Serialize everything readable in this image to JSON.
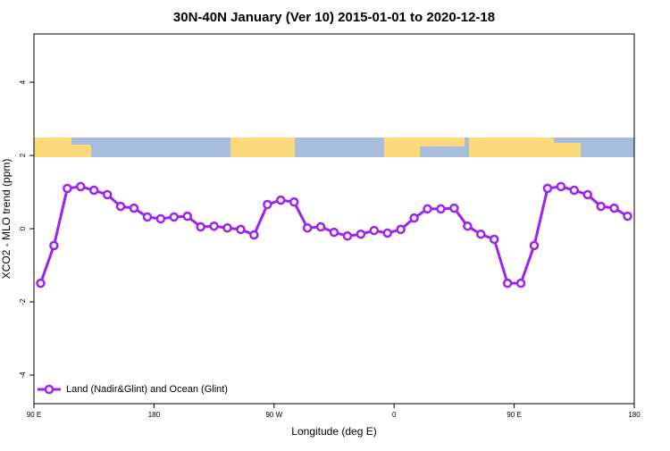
{
  "chart_data": {
    "type": "line",
    "title": "30N-40N January (Ver 10)   2015-01-01 to 2020-12-18",
    "x_label": "Longitude (deg E)",
    "y_label": "XCO2 - MLO trend (ppm)",
    "x": [
      95,
      105,
      115,
      125,
      135,
      145,
      155,
      165,
      175,
      185,
      195,
      205,
      215,
      225,
      235,
      245,
      255,
      265,
      275,
      285,
      295,
      305,
      315,
      325,
      335,
      345,
      355,
      365,
      375,
      385,
      395,
      405,
      415,
      425,
      435,
      445,
      455,
      465,
      475,
      485,
      495,
      505,
      515,
      525,
      535
    ],
    "series": [
      {
        "name": "Land (Nadir&Glint) and Ocean (Glint)",
        "color": "#a020f0",
        "values": [
          -1.49,
          -0.46,
          1.1,
          1.15,
          1.05,
          0.93,
          0.61,
          0.56,
          0.32,
          0.27,
          0.32,
          0.34,
          0.05,
          0.07,
          0.02,
          -0.02,
          -0.17,
          0.66,
          0.78,
          0.73,
          0.02,
          0.05,
          -0.1,
          -0.2,
          -0.15,
          -0.05,
          -0.12,
          -0.02,
          0.29,
          0.54,
          0.54,
          0.56,
          0.07,
          -0.15,
          -0.29,
          -1.49,
          -1.49,
          -0.46,
          1.1,
          1.15,
          1.05,
          0.93,
          0.61,
          0.56,
          0.34
        ]
      }
    ],
    "xlim": [
      90,
      540
    ],
    "xticks": [
      {
        "value": 90,
        "label": "90 E"
      },
      180,
      {
        "value": 270,
        "label": "90 W"
      },
      {
        "value": 360,
        "label": "0"
      },
      {
        "value": 450,
        "label": "90 E"
      },
      {
        "value": 540,
        "label": "180"
      }
    ],
    "ylim": [
      -4.78,
      5.32
    ],
    "yticks": [
      -4,
      -2,
      0,
      2,
      4
    ],
    "legend": "bottom-left"
  }
}
